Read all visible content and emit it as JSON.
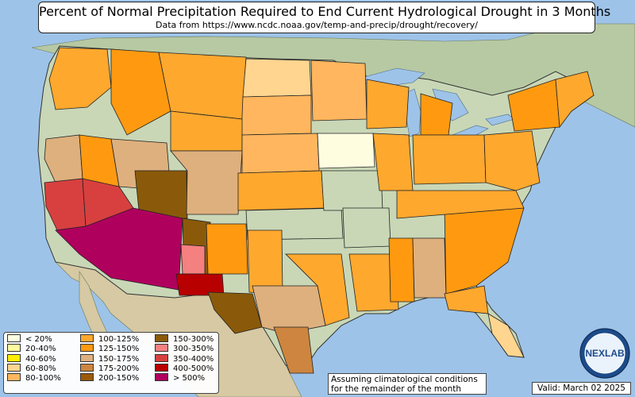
{
  "title": "Percent of Normal Precipitation Required to End Current Hydrological Drought in 3 Months",
  "subtitle": "Data from https://www.ncdc.noaa.gov/temp-and-precip/drought/recovery/",
  "legend": [
    {
      "label": "< 20%",
      "color": "#fffde0"
    },
    {
      "label": "20-40%",
      "color": "#fffaa0"
    },
    {
      "label": "40-60%",
      "color": "#ffee00"
    },
    {
      "label": "60-80%",
      "color": "#ffd58f"
    },
    {
      "label": "80-100%",
      "color": "#ffb65e"
    },
    {
      "label": "100-125%",
      "color": "#ffa82e"
    },
    {
      "label": "125-150%",
      "color": "#ff9a10"
    },
    {
      "label": "150-175%",
      "color": "#deb07e"
    },
    {
      "label": "175-200%",
      "color": "#cd853f"
    },
    {
      "label": "200-150%",
      "color": "#9b5a0a"
    },
    {
      "label": "150-300%",
      "color": "#8a5a0a"
    },
    {
      "label": "300-350%",
      "color": "#f58080"
    },
    {
      "label": "350-400%",
      "color": "#d84040"
    },
    {
      "label": "400-500%",
      "color": "#b80000"
    },
    {
      "label": "> 500%",
      "color": "#b0005e"
    }
  ],
  "note_line1": "Assuming climatological conditions",
  "note_line2": "for the remainder of the month",
  "valid": "Valid: March 02 2025",
  "logo_text": "NEXLAB",
  "logo_text_a": "NE",
  "logo_text_b": "LAB",
  "colors": {
    "ocean": "#9ec3e8",
    "land": "#c9d7b6",
    "canada": "#b7c9a3",
    "mexico": "#d6c9a3",
    "water": "#9ec3e8"
  }
}
